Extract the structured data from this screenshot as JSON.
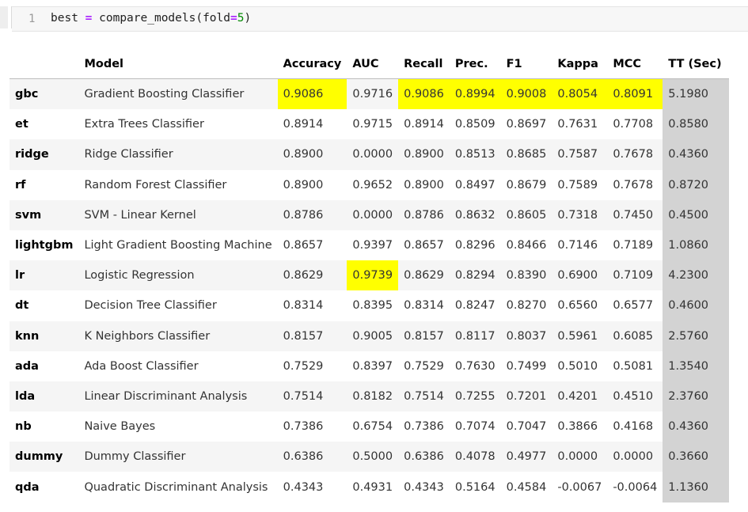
{
  "cell": {
    "line_number": "1",
    "code_var": "best",
    "code_eq": "=",
    "code_func": "compare_models(fold",
    "code_eq2": "=",
    "code_num": "5",
    "code_close": ")"
  },
  "table": {
    "columns": [
      "",
      "Model",
      "Accuracy",
      "AUC",
      "Recall",
      "Prec.",
      "F1",
      "Kappa",
      "MCC",
      "TT (Sec)"
    ],
    "rows": [
      {
        "idx": "gbc",
        "model": "Gradient Boosting Classifier",
        "accuracy": "0.9086",
        "auc": "0.9716",
        "recall": "0.9086",
        "prec": "0.8994",
        "f1": "0.9008",
        "kappa": "0.8054",
        "mcc": "0.8091",
        "tt": "5.1980"
      },
      {
        "idx": "et",
        "model": "Extra Trees Classifier",
        "accuracy": "0.8914",
        "auc": "0.9715",
        "recall": "0.8914",
        "prec": "0.8509",
        "f1": "0.8697",
        "kappa": "0.7631",
        "mcc": "0.7708",
        "tt": "0.8580"
      },
      {
        "idx": "ridge",
        "model": "Ridge Classifier",
        "accuracy": "0.8900",
        "auc": "0.0000",
        "recall": "0.8900",
        "prec": "0.8513",
        "f1": "0.8685",
        "kappa": "0.7587",
        "mcc": "0.7678",
        "tt": "0.4360"
      },
      {
        "idx": "rf",
        "model": "Random Forest Classifier",
        "accuracy": "0.8900",
        "auc": "0.9652",
        "recall": "0.8900",
        "prec": "0.8497",
        "f1": "0.8679",
        "kappa": "0.7589",
        "mcc": "0.7678",
        "tt": "0.8720"
      },
      {
        "idx": "svm",
        "model": "SVM - Linear Kernel",
        "accuracy": "0.8786",
        "auc": "0.0000",
        "recall": "0.8786",
        "prec": "0.8632",
        "f1": "0.8605",
        "kappa": "0.7318",
        "mcc": "0.7450",
        "tt": "0.4500"
      },
      {
        "idx": "lightgbm",
        "model": "Light Gradient Boosting Machine",
        "accuracy": "0.8657",
        "auc": "0.9397",
        "recall": "0.8657",
        "prec": "0.8296",
        "f1": "0.8466",
        "kappa": "0.7146",
        "mcc": "0.7189",
        "tt": "1.0860"
      },
      {
        "idx": "lr",
        "model": "Logistic Regression",
        "accuracy": "0.8629",
        "auc": "0.9739",
        "recall": "0.8629",
        "prec": "0.8294",
        "f1": "0.8390",
        "kappa": "0.6900",
        "mcc": "0.7109",
        "tt": "4.2300"
      },
      {
        "idx": "dt",
        "model": "Decision Tree Classifier",
        "accuracy": "0.8314",
        "auc": "0.8395",
        "recall": "0.8314",
        "prec": "0.8247",
        "f1": "0.8270",
        "kappa": "0.6560",
        "mcc": "0.6577",
        "tt": "0.4600"
      },
      {
        "idx": "knn",
        "model": "K Neighbors Classifier",
        "accuracy": "0.8157",
        "auc": "0.9005",
        "recall": "0.8157",
        "prec": "0.8117",
        "f1": "0.8037",
        "kappa": "0.5961",
        "mcc": "0.6085",
        "tt": "2.5760"
      },
      {
        "idx": "ada",
        "model": "Ada Boost Classifier",
        "accuracy": "0.7529",
        "auc": "0.8397",
        "recall": "0.7529",
        "prec": "0.7630",
        "f1": "0.7499",
        "kappa": "0.5010",
        "mcc": "0.5081",
        "tt": "1.3540"
      },
      {
        "idx": "lda",
        "model": "Linear Discriminant Analysis",
        "accuracy": "0.7514",
        "auc": "0.8182",
        "recall": "0.7514",
        "prec": "0.7255",
        "f1": "0.7201",
        "kappa": "0.4201",
        "mcc": "0.4510",
        "tt": "2.3760"
      },
      {
        "idx": "nb",
        "model": "Naive Bayes",
        "accuracy": "0.7386",
        "auc": "0.6754",
        "recall": "0.7386",
        "prec": "0.7074",
        "f1": "0.7047",
        "kappa": "0.3866",
        "mcc": "0.4168",
        "tt": "0.4360"
      },
      {
        "idx": "dummy",
        "model": "Dummy Classifier",
        "accuracy": "0.6386",
        "auc": "0.5000",
        "recall": "0.6386",
        "prec": "0.4078",
        "f1": "0.4977",
        "kappa": "0.0000",
        "mcc": "0.0000",
        "tt": "0.3660"
      },
      {
        "idx": "qda",
        "model": "Quadratic Discriminant Analysis",
        "accuracy": "0.4343",
        "auc": "0.4931",
        "recall": "0.4343",
        "prec": "0.5164",
        "f1": "0.4584",
        "kappa": "-0.0067",
        "mcc": "-0.0064",
        "tt": "1.1360"
      }
    ]
  },
  "colors": {
    "highlight": "#ffff00",
    "tt_column": "#d3d3d3",
    "stripe": "#f5f5f5"
  }
}
